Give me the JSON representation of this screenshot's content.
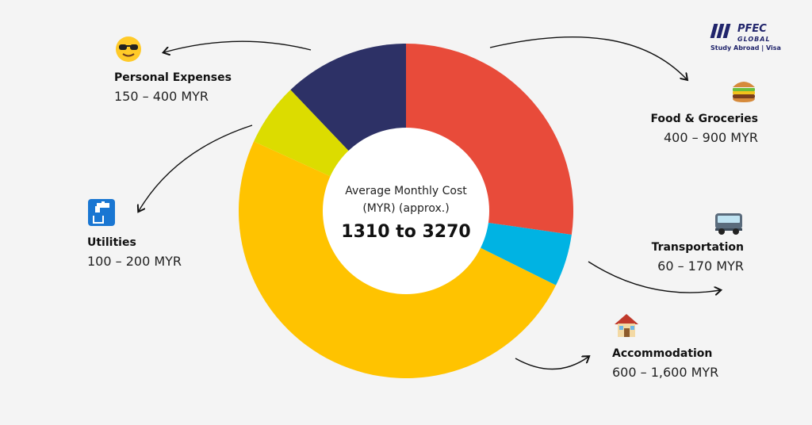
{
  "logo": {
    "name": "PFEC",
    "sub_name": "GLOBAL",
    "tagline": "Study Abroad | Visa"
  },
  "center": {
    "caption_line1": "Average Monthly Cost",
    "caption_line2": "(MYR) (approx.)",
    "value": "1310 to 3270"
  },
  "colors": {
    "food": "#E84B3A",
    "transportation": "#00B3E3",
    "accommodation": "#FFC300",
    "utilities": "#DCDC00",
    "personal": "#2D3166",
    "hole": "#FFFFFF"
  },
  "labels": {
    "personal": {
      "title": "Personal Expenses",
      "range": "150 – 400 MYR",
      "icon": "sunglasses-face-icon"
    },
    "food": {
      "title": "Food & Groceries",
      "range": "400 – 900 MYR",
      "icon": "burger-icon"
    },
    "transportation": {
      "title": "Transportation",
      "range": "60 – 170 MYR",
      "icon": "bus-icon"
    },
    "accommodation": {
      "title": "Accommodation",
      "range": "600 – 1,600 MYR",
      "icon": "house-icon"
    },
    "utilities": {
      "title": "Utilities",
      "range": "100 – 200 MYR",
      "icon": "water-tap-icon"
    }
  },
  "chart_data": {
    "type": "pie",
    "style": "donut",
    "categories": [
      "Food & Groceries",
      "Transportation",
      "Accommodation",
      "Utilities",
      "Personal Expenses"
    ],
    "values": [
      27,
      5,
      49,
      6,
      12
    ],
    "unit": "approx. share of donut (%)",
    "title": "Average Monthly Cost (MYR) (approx.)",
    "total_range": "1310 to 3270"
  }
}
